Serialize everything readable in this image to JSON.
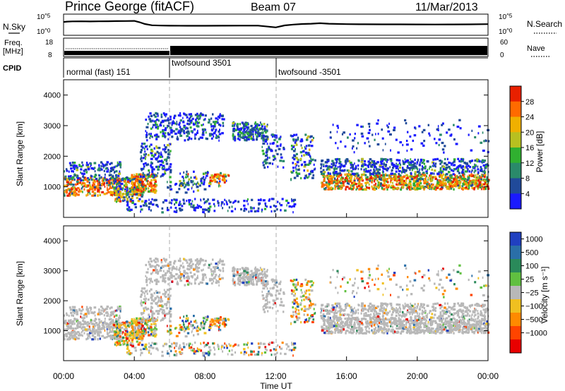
{
  "header": {
    "station": "Prince George (fitACF)",
    "beam": "Beam 07",
    "date": "11/Mar/2013"
  },
  "labels": {
    "nsky": "N.Sky",
    "nsearch": "N.Search",
    "freq_line1": "Freq.",
    "freq_line2": "[MHz]",
    "nave": "Nave",
    "cpid": "CPID",
    "pow_1e5": "10^5",
    "pow_1e0": "10^0",
    "freq_hi": "18",
    "freq_lo": "8",
    "nave_hi": "60",
    "nave_lo": "0"
  },
  "cpid_segments": [
    {
      "label": "normal (fast) 151",
      "start": 0
    },
    {
      "label": "twofsound 3501",
      "start": 6
    },
    {
      "label": "twofsound -3501",
      "start": 12
    }
  ],
  "x_axis": {
    "title": "Time UT",
    "ticks": [
      "00:00",
      "04:00",
      "08:00",
      "12:00",
      "16:00",
      "20:00",
      "00:00"
    ],
    "tick_values": [
      0,
      4,
      8,
      12,
      16,
      20,
      24
    ],
    "range": [
      0,
      24
    ]
  },
  "y_axis": {
    "title": "Slant Range [km]",
    "ticks": [
      "1000",
      "2000",
      "3000",
      "4000"
    ],
    "tick_values": [
      1000,
      2000,
      3000,
      4000
    ],
    "range": [
      0,
      4500
    ]
  },
  "power_bar": {
    "title": "Power [dB]",
    "ticks": [
      "4",
      "8",
      "12",
      "16",
      "20",
      "24",
      "28"
    ],
    "colors": [
      "#1a1aff",
      "#204a9a",
      "#2a8a6a",
      "#30b030",
      "#b8c020",
      "#f0b000",
      "#ff6a00",
      "#e82000"
    ]
  },
  "velocity_bar": {
    "title": "Velocity [m s⁻¹]",
    "ticks": [
      "1000",
      "500",
      "100",
      "25",
      "−25",
      "−100",
      "−500",
      "−1000"
    ],
    "colors": [
      "#2040c0",
      "#2a6fa8",
      "#2a8a5a",
      "#60c040",
      "#b8b8b8",
      "#f0c020",
      "#ff8a00",
      "#ff4400",
      "#e80000"
    ]
  },
  "chart_data": [
    {
      "type": "line",
      "name": "N.Sky",
      "x": [
        0,
        0.2,
        0.5,
        1,
        1.5,
        2,
        2.5,
        3,
        3.5,
        4,
        4.3,
        4.6,
        5,
        5.5,
        6,
        7,
        8,
        9,
        10,
        11,
        12,
        12.5,
        13,
        13.5,
        14,
        14.5,
        15,
        16,
        17,
        18,
        19,
        20,
        21,
        22,
        23,
        24
      ],
      "values": [
        1800,
        2200,
        2500,
        2600,
        2400,
        2700,
        2800,
        3000,
        3200,
        3500,
        1500,
        500,
        220,
        190,
        170,
        160,
        165,
        170,
        175,
        180,
        60,
        200,
        350,
        500,
        600,
        800,
        600,
        450,
        420,
        400,
        390,
        370,
        360,
        380,
        400,
        450
      ],
      "ylim": [
        1,
        100000
      ],
      "log": true
    },
    {
      "type": "step",
      "name": "Freq.",
      "x": [
        0,
        6,
        24
      ],
      "values": [
        10.5,
        10.5,
        10.5
      ],
      "ylim": [
        8,
        18
      ]
    },
    {
      "type": "heatmap",
      "name": "Power",
      "xlim": [
        0,
        24
      ],
      "ylim": [
        0,
        4500
      ],
      "zlim": [
        0,
        30
      ]
    },
    {
      "type": "heatmap",
      "name": "Velocity",
      "xlim": [
        0,
        24
      ],
      "ylim": [
        0,
        4500
      ],
      "zlim": [
        -1000,
        1000
      ]
    }
  ]
}
